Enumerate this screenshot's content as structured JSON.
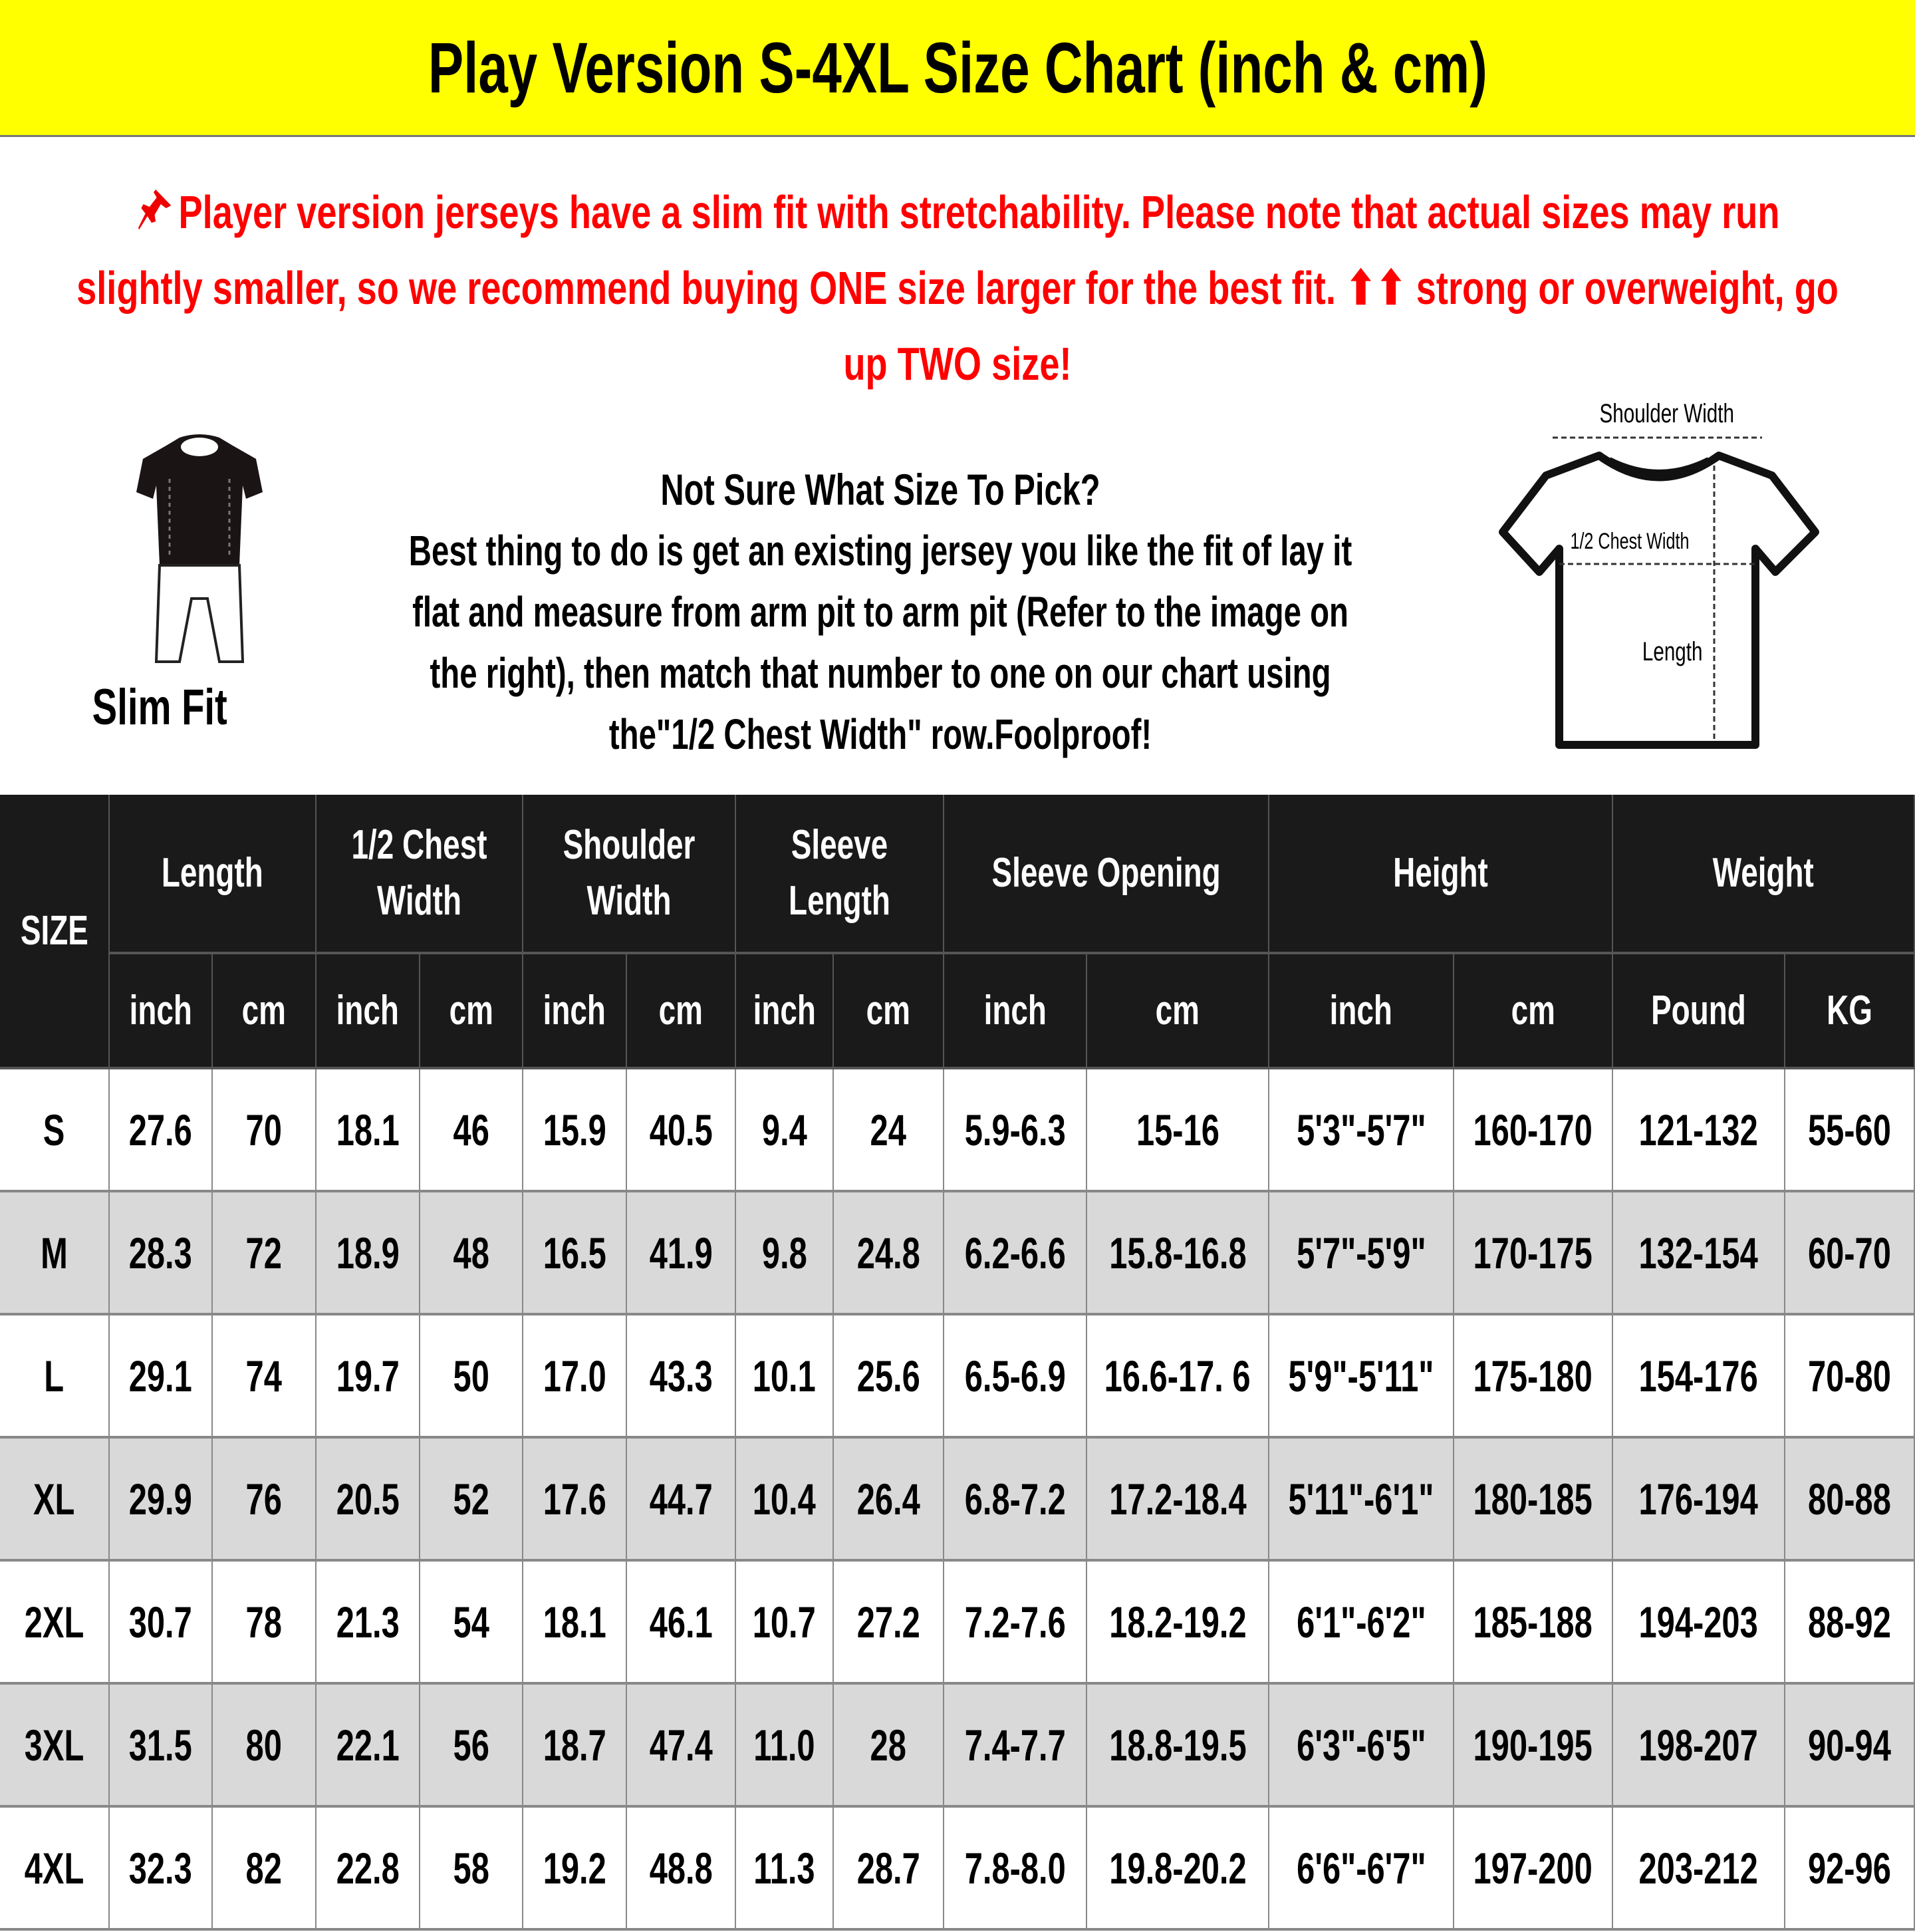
{
  "title": "Play Version S-4XL Size Chart (inch & cm)",
  "colors": {
    "title_bg": "#ffff00",
    "notice_text": "#ff0000",
    "header_bg": "#1a1a1a",
    "alt_row_bg": "#d9d9d9"
  },
  "notice": {
    "icon": "pushpin-icon",
    "lines": [
      "Player version jerseys have a slim fit with stretchability. Please note that actual sizes may run",
      "slightly smaller, so we recommend buying ONE size larger for the best fit. ⬆⬆ strong or overweight, go",
      "up TWO size!"
    ]
  },
  "slim_fit": {
    "label": "Slim Fit",
    "icon": "slim-fit-figure-icon"
  },
  "guide": {
    "question": "Not Sure What Size To Pick?",
    "lines": [
      "Best thing to do is get an existing jersey you like the fit of lay it",
      "flat and measure from arm pit to arm pit (Refer to the image on",
      "the right), then match that number to one on our chart using",
      "the\"1/2 Chest Width\" row.Foolproof!"
    ]
  },
  "diagram": {
    "shoulder_width": "Shoulder Width",
    "chest_width": "1/2 Chest Width",
    "length": "Length",
    "icon": "tshirt-diagram-icon"
  },
  "table": {
    "size_header": "SIZE",
    "groups": [
      {
        "label": "Length",
        "subs": [
          "inch",
          "cm"
        ]
      },
      {
        "label": "1/2 Chest Width",
        "subs": [
          "inch",
          "cm"
        ]
      },
      {
        "label": "Shoulder Width",
        "subs": [
          "inch",
          "cm"
        ]
      },
      {
        "label": "Sleeve Length",
        "subs": [
          "inch",
          "cm"
        ]
      },
      {
        "label": "Sleeve Opening",
        "subs": [
          "inch",
          "cm"
        ]
      },
      {
        "label": "Height",
        "subs": [
          "inch",
          "cm"
        ]
      },
      {
        "label": "Weight",
        "subs": [
          "Pound",
          "KG"
        ]
      }
    ],
    "rows": [
      [
        "S",
        "27.6",
        "70",
        "18.1",
        "46",
        "15.9",
        "40.5",
        "9.4",
        "24",
        "5.9-6.3",
        "15-16",
        "5'3\"-5'7\"",
        "160-170",
        "121-132",
        "55-60"
      ],
      [
        "M",
        "28.3",
        "72",
        "18.9",
        "48",
        "16.5",
        "41.9",
        "9.8",
        "24.8",
        "6.2-6.6",
        "15.8-16.8",
        "5'7\"-5'9\"",
        "170-175",
        "132-154",
        "60-70"
      ],
      [
        "L",
        "29.1",
        "74",
        "19.7",
        "50",
        "17.0",
        "43.3",
        "10.1",
        "25.6",
        "6.5-6.9",
        "16.6-17. 6",
        "5'9\"-5'11\"",
        "175-180",
        "154-176",
        "70-80"
      ],
      [
        "XL",
        "29.9",
        "76",
        "20.5",
        "52",
        "17.6",
        "44.7",
        "10.4",
        "26.4",
        "6.8-7.2",
        "17.2-18.4",
        "5'11\"-6'1\"",
        "180-185",
        "176-194",
        "80-88"
      ],
      [
        "2XL",
        "30.7",
        "78",
        "21.3",
        "54",
        "18.1",
        "46.1",
        "10.7",
        "27.2",
        "7.2-7.6",
        "18.2-19.2",
        "6'1\"-6'2\"",
        "185-188",
        "194-203",
        "88-92"
      ],
      [
        "3XL",
        "31.5",
        "80",
        "22.1",
        "56",
        "18.7",
        "47.4",
        "11.0",
        "28",
        "7.4-7.7",
        "18.8-19.5",
        "6'3\"-6'5\"",
        "190-195",
        "198-207",
        "90-94"
      ],
      [
        "4XL",
        "32.3",
        "82",
        "22.8",
        "58",
        "19.2",
        "48.8",
        "11.3",
        "28.7",
        "7.8-8.0",
        "19.8-20.2",
        "6'6\"-6'7\"",
        "197-200",
        "203-212",
        "92-96"
      ]
    ]
  }
}
